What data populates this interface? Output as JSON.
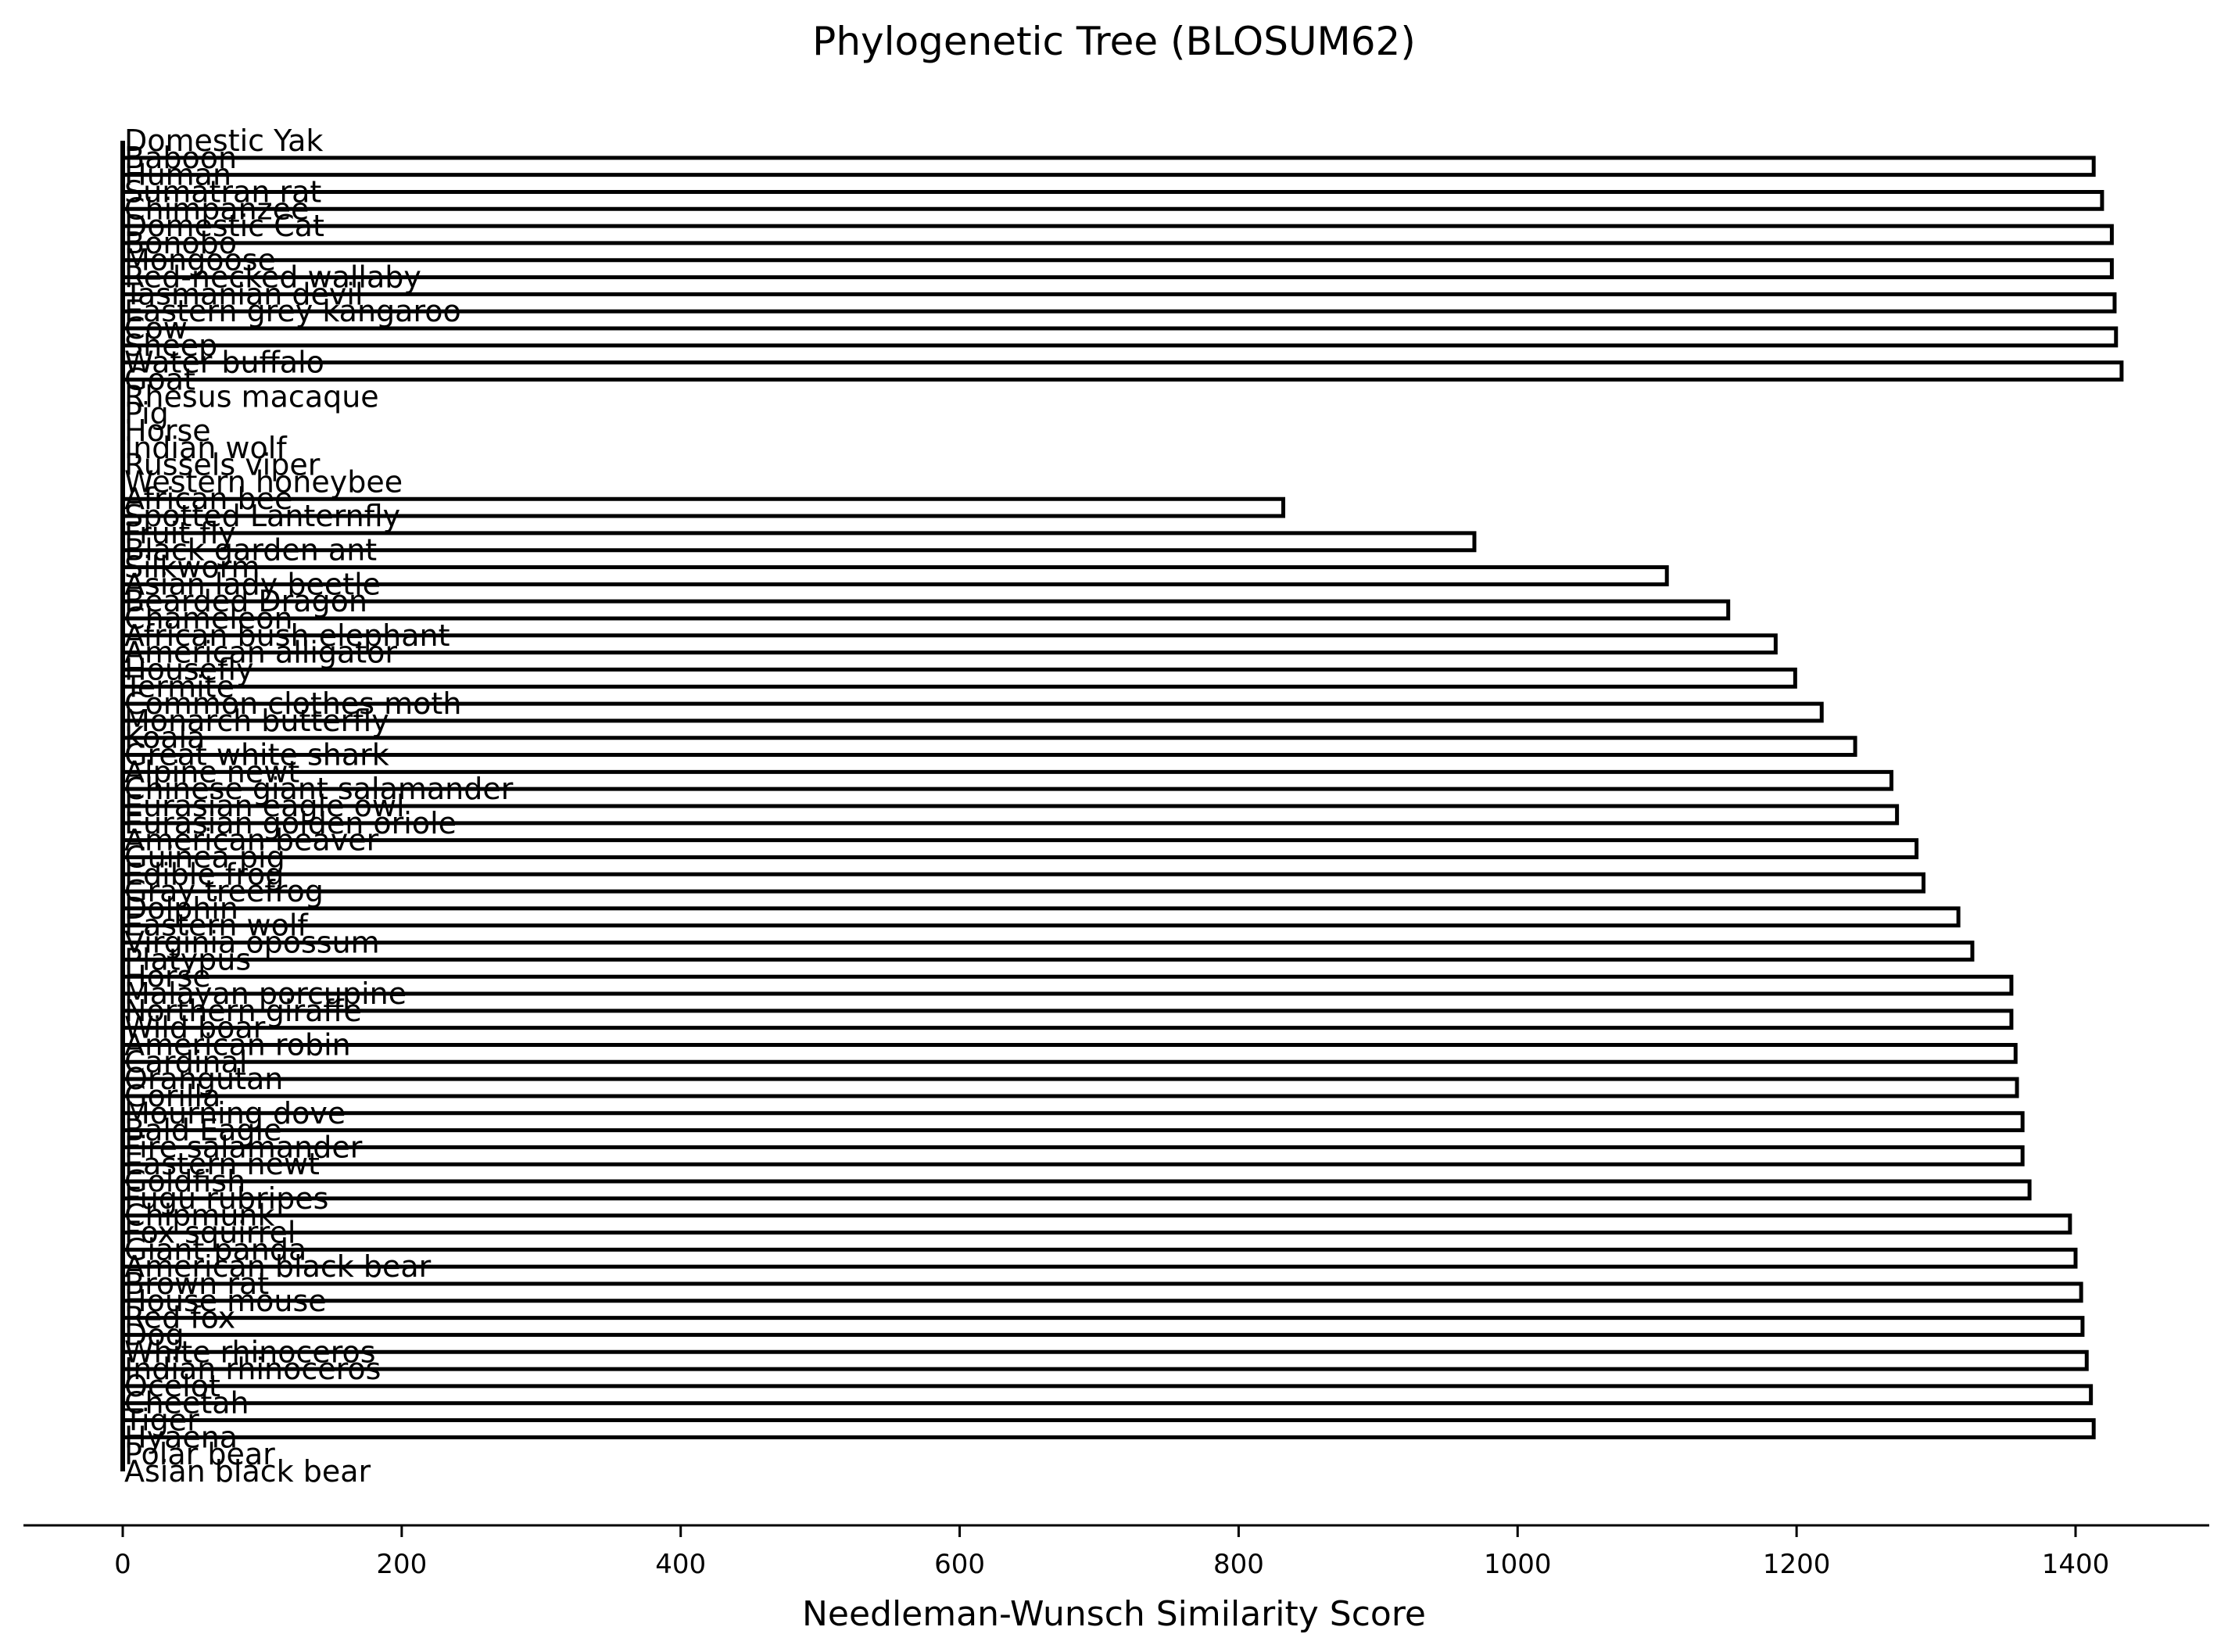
{
  "chart_data": {
    "type": "dendrogram",
    "orientation": "horizontal",
    "title": "Phylogenetic Tree (BLOSUM62)",
    "xlabel": "Needleman-Wunsch Similarity Score",
    "xlim": [
      -75,
      1440
    ],
    "x_ticks": [
      0,
      200,
      400,
      600,
      800,
      1000,
      1200,
      1400
    ],
    "grid": false,
    "leaves": [
      "Domestic Yak",
      "Baboon",
      "Human",
      "Sumatran rat",
      "Chimpanzee",
      "Domestic Cat",
      "Bonobo",
      "Mongoose",
      "Red-necked wallaby",
      "Tasmanian devil",
      "Eastern grey kangaroo",
      "Cow",
      "Sheep",
      "Water buffalo",
      "Goat",
      "Rhesus macaque",
      "Pig",
      "Horse",
      "Indian wolf",
      "Russels viper",
      "Western honeybee",
      "African bee",
      "Spotted Lanternfly",
      "Fruit fly",
      "Black garden ant",
      "Silkworm",
      "Asian lady beetle",
      "Bearded Dragon",
      "Chameleon",
      "African bush elephant",
      "American alligator",
      "Housefly",
      "Termite",
      "Common clothes moth",
      "Monarch butterfly",
      "Koala",
      "Great white shark",
      "Alpine newt",
      "Chinese giant salamander",
      "Eurasian eagle owl",
      "Eurasian golden oriole",
      "American beaver",
      "Guinea pig",
      "Edible frog",
      "Gray treefrog",
      "Dolphin",
      "Eastern wolf",
      "Virginia opossum",
      "Platypus",
      "Horse",
      "Malayan porcupine",
      "Northern giraffe",
      "Wild boar",
      "American robin",
      "Cardinal",
      "Orangutan",
      "Gorilla",
      "Mourning dove",
      "Bald Eagle",
      "Fire salamander",
      "Eastern newt",
      "Goldfish",
      "Fugu rubripes",
      "Chipmunk",
      "Fox squirrel",
      "Giant panda",
      "American black bear",
      "Brown rat",
      "House mouse",
      "Red fox",
      "Dog",
      "White rhinoceros",
      "Indian rhinoceros",
      "Ocelot",
      "Cheetah",
      "Tiger",
      "Hyaena",
      "Polar bear",
      "Asian black bear"
    ],
    "merge_heights": [
      1413,
      1419,
      1426,
      1426,
      1428,
      1429,
      1433,
      832,
      969,
      1107,
      1151,
      1185,
      1199,
      1218,
      1242,
      1268,
      1272,
      1286,
      1291,
      1316,
      1326,
      1354,
      1354,
      1357,
      1358,
      1362,
      1362,
      1367,
      1396,
      1400,
      1404,
      1405,
      1408,
      1411,
      1413
    ]
  }
}
